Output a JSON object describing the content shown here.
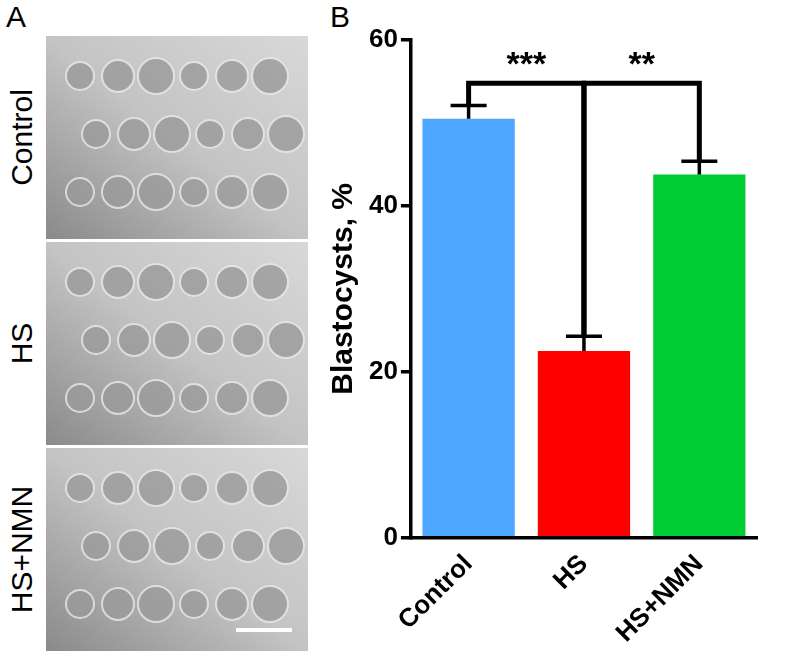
{
  "panel_labels": [
    "A",
    "B"
  ],
  "images": {
    "rows": [
      "Control",
      "HS",
      "HS+NMN"
    ]
  },
  "chart_data": {
    "type": "bar",
    "y_label": "Blastocysts, %",
    "categories": [
      "Control",
      "HS",
      "HS+NMN"
    ],
    "values": [
      50.5,
      22.5,
      43.8
    ],
    "errors": [
      1.6,
      1.8,
      1.6
    ],
    "colors": [
      "#4da6ff",
      "#ff0000",
      "#00cc33"
    ],
    "ylim": [
      0,
      60
    ],
    "yticks": [
      0,
      20,
      40,
      60
    ],
    "grid": false,
    "annotations": [
      {
        "text": "***",
        "from": "Control",
        "to": "HS"
      },
      {
        "text": "**",
        "from": "HS",
        "to": "HS+NMN"
      }
    ]
  }
}
